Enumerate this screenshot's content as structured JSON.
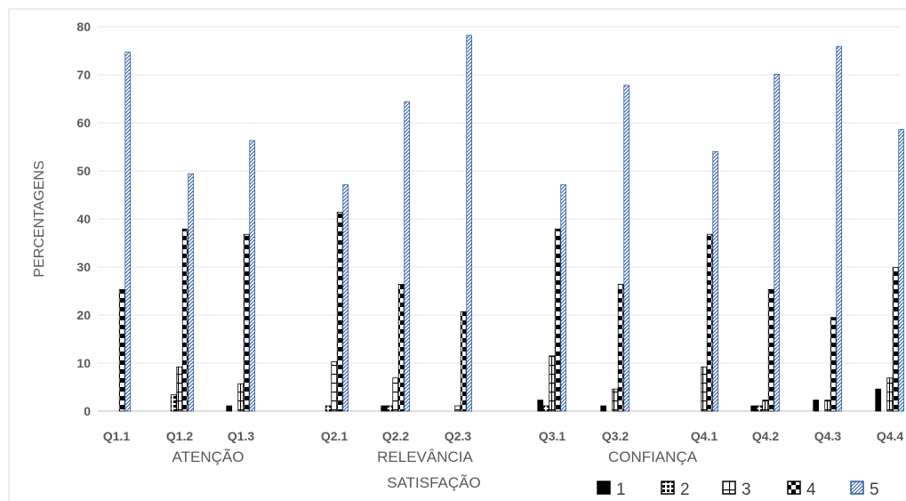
{
  "chart_data": {
    "type": "bar",
    "ylabel": "PERCENTAGENS",
    "ylim": [
      0,
      80
    ],
    "yticks": [
      0,
      10,
      20,
      30,
      40,
      50,
      60,
      70,
      80
    ],
    "categories": [
      "Q1.1",
      "Q1.2",
      "Q1.3",
      "Q2.1",
      "Q2.2",
      "Q2.3",
      "Q3.1",
      "Q3.2",
      "Q4.1",
      "Q4.2",
      "Q4.3",
      "Q4.4"
    ],
    "groups": [
      {
        "label": "ATENÇÃO",
        "categories": [
          "Q1.1",
          "Q1.2",
          "Q1.3"
        ]
      },
      {
        "label": "RELEVÂNCIA",
        "categories": [
          "Q2.1",
          "Q2.2",
          "Q2.3"
        ]
      },
      {
        "label": "CONFIANÇA",
        "categories": [
          "Q3.1",
          "Q3.2",
          "Q4.1"
        ]
      }
    ],
    "group_labels_secondary": [
      "SATISFAÇÃO"
    ],
    "series": [
      {
        "name": "1",
        "pattern": "solid",
        "values": [
          0,
          0,
          1.1,
          0,
          1.1,
          0,
          2.3,
          1.1,
          0,
          1.1,
          2.3,
          4.6
        ]
      },
      {
        "name": "2",
        "pattern": "grid",
        "values": [
          0,
          3.4,
          0,
          1.1,
          1.1,
          0,
          1.1,
          0,
          0,
          1.1,
          0,
          0
        ]
      },
      {
        "name": "3",
        "pattern": "small-grid",
        "values": [
          0,
          9.2,
          5.7,
          10.3,
          6.9,
          1.1,
          11.5,
          4.6,
          9.2,
          2.3,
          2.3,
          6.9
        ]
      },
      {
        "name": "4",
        "pattern": "checker",
        "values": [
          25.3,
          37.9,
          36.8,
          41.4,
          26.4,
          20.7,
          37.9,
          26.4,
          36.8,
          25.3,
          19.5,
          29.9
        ]
      },
      {
        "name": "5",
        "pattern": "diagonal",
        "values": [
          74.7,
          49.4,
          56.3,
          47.1,
          64.4,
          78.2,
          47.1,
          67.8,
          54.0,
          70.1,
          75.9,
          58.6
        ]
      }
    ],
    "legend_position": "bottom-right",
    "grid": "horizontal"
  }
}
